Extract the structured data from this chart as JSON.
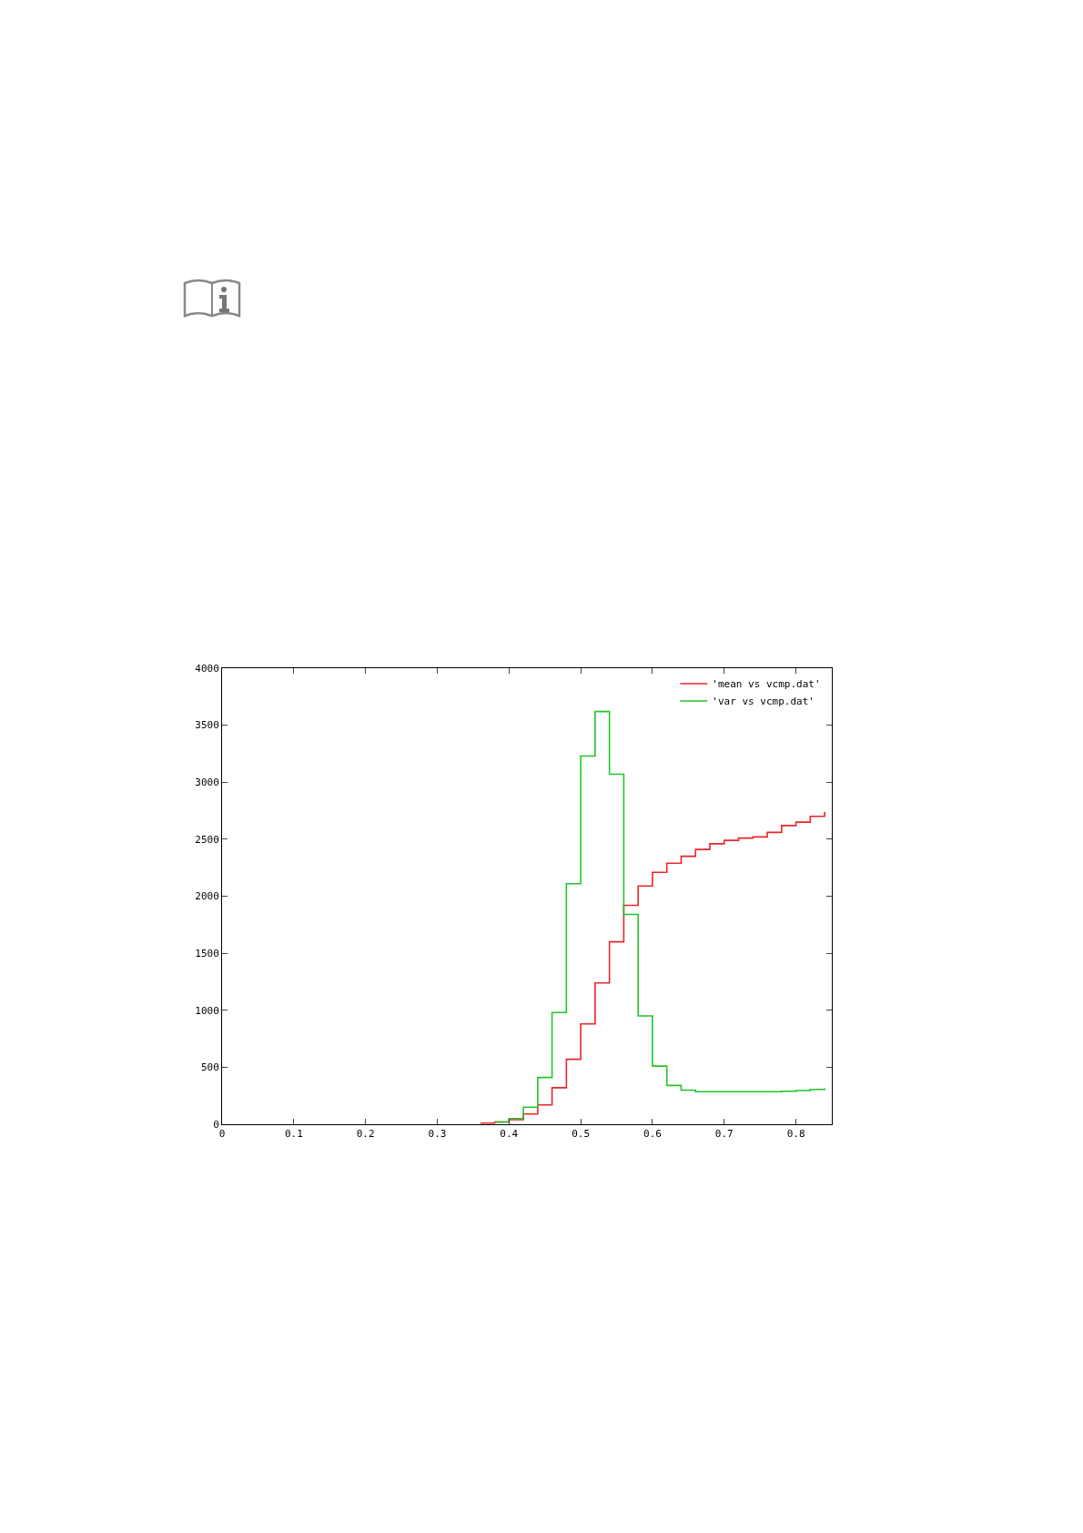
{
  "chart_data": {
    "type": "step",
    "xlim": [
      0,
      0.85
    ],
    "xticks": [
      {
        "value": 0,
        "label": "0"
      },
      0.1,
      0.2,
      0.3,
      0.4,
      0.5,
      0.6,
      0.7,
      0.8
    ],
    "ylim": [
      0,
      4000
    ],
    "yticks": [
      0,
      500,
      1000,
      1500,
      2000,
      2500,
      3000,
      3500,
      4000
    ],
    "grid": false,
    "legend": "top right",
    "marker": "none",
    "line_style": "solid",
    "series": [
      {
        "name": "'mean vs vcmp.dat'",
        "color": "#e8262a",
        "x": [
          0.36,
          0.38,
          0.4,
          0.42,
          0.44,
          0.46,
          0.48,
          0.5,
          0.52,
          0.54,
          0.56,
          0.58,
          0.6,
          0.62,
          0.64,
          0.66,
          0.68,
          0.7,
          0.72,
          0.74,
          0.76,
          0.78,
          0.8,
          0.82,
          0.84
        ],
        "values": [
          10,
          20,
          40,
          90,
          170,
          320,
          570,
          880,
          1240,
          1600,
          1920,
          2090,
          2210,
          2290,
          2350,
          2410,
          2460,
          2490,
          2510,
          2520,
          2560,
          2620,
          2650,
          2700,
          2740
        ]
      },
      {
        "name": "'var vs vcmp.dat'",
        "color": "#22c42a",
        "x": [
          0.38,
          0.4,
          0.42,
          0.44,
          0.46,
          0.48,
          0.5,
          0.52,
          0.54,
          0.56,
          0.58,
          0.6,
          0.62,
          0.64,
          0.66,
          0.68,
          0.7,
          0.72,
          0.74,
          0.76,
          0.78,
          0.8,
          0.82,
          0.84
        ],
        "values": [
          20,
          50,
          150,
          410,
          980,
          2110,
          3230,
          3620,
          3070,
          1840,
          950,
          510,
          340,
          300,
          285,
          285,
          285,
          285,
          285,
          285,
          290,
          295,
          305,
          315
        ]
      }
    ]
  }
}
